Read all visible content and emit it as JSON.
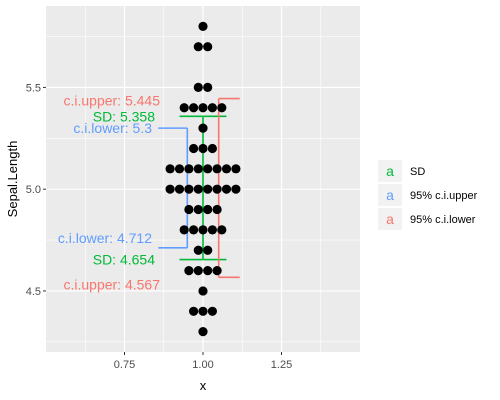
{
  "chart_data": {
    "type": "scatter",
    "xlabel": "x",
    "ylabel": "Sepal.Length",
    "xlim": [
      0.5,
      1.5
    ],
    "ylim": [
      4.2,
      5.9
    ],
    "x_ticks": [
      0.75,
      1.0,
      1.25
    ],
    "x_tick_labels": [
      "0.75",
      "1.00",
      "1.25"
    ],
    "y_ticks": [
      4.5,
      5.0,
      5.5
    ],
    "y_tick_labels": [
      "4.5",
      "5.0",
      "5.5"
    ],
    "background": "#ebebeb",
    "grid": true,
    "legend_position": "right",
    "points": [
      {
        "y": 4.3,
        "count": 1
      },
      {
        "y": 4.4,
        "count": 3
      },
      {
        "y": 4.5,
        "count": 1
      },
      {
        "y": 4.6,
        "count": 4
      },
      {
        "y": 4.7,
        "count": 2
      },
      {
        "y": 4.8,
        "count": 5
      },
      {
        "y": 4.9,
        "count": 4
      },
      {
        "y": 5.0,
        "count": 8
      },
      {
        "y": 5.1,
        "count": 8
      },
      {
        "y": 5.2,
        "count": 3
      },
      {
        "y": 5.3,
        "count": 1
      },
      {
        "y": 5.4,
        "count": 5
      },
      {
        "y": 5.5,
        "count": 2
      },
      {
        "y": 5.7,
        "count": 2
      },
      {
        "y": 5.8,
        "count": 1
      }
    ],
    "intervals": [
      {
        "key": "sd",
        "name": "SD",
        "color": "#00ba38",
        "x": 1.0,
        "lower": 4.654,
        "upper": 5.358,
        "label_lower": "SD: 4.654",
        "label_upper": "SD: 5.358"
      },
      {
        "key": "upper",
        "name": "95% c.i.upper",
        "color": "#619cff",
        "x": 0.95,
        "lower": 4.712,
        "upper": 5.3,
        "label_lower": "c.i.lower: 4.712",
        "label_upper": "c.i.lower: 5.3"
      },
      {
        "key": "lower",
        "name": "95% c.i.lower",
        "color": "#f8766d",
        "x": 1.05,
        "lower": 4.567,
        "upper": 5.445,
        "label_lower": "c.i.upper: 4.567",
        "label_upper": "c.i.upper: 5.445"
      }
    ],
    "legend": [
      {
        "key": "a",
        "label": "SD",
        "color": "#00ba38"
      },
      {
        "key": "a",
        "label": "95% c.i.upper",
        "color": "#619cff"
      },
      {
        "key": "a",
        "label": "95% c.i.lower",
        "color": "#f8766d"
      }
    ]
  }
}
